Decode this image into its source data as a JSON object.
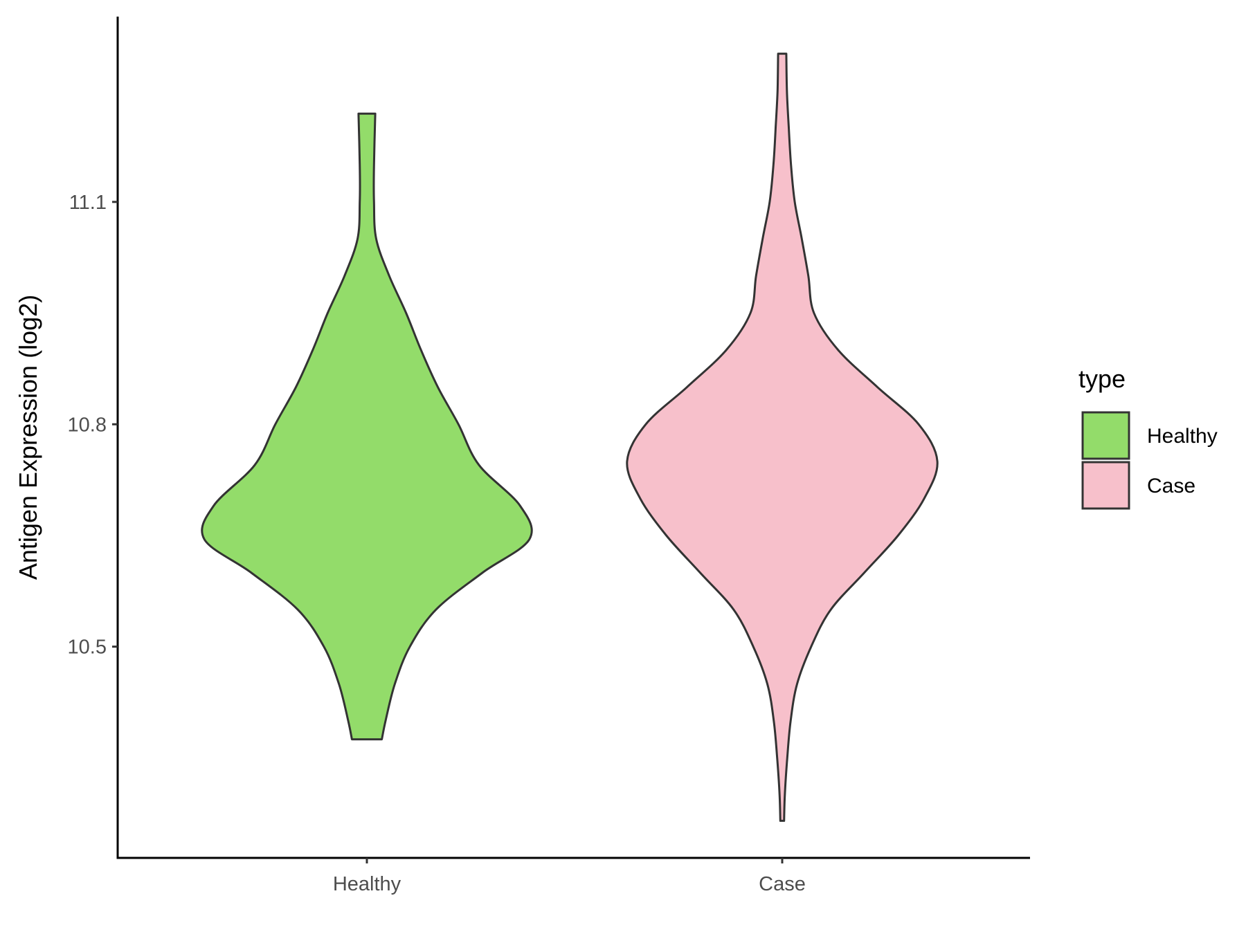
{
  "chart_data": {
    "type": "violin",
    "title": "",
    "xlabel": "",
    "ylabel": "Antigen Expression (log2)",
    "ylim": [
      10.215,
      11.35
    ],
    "yticks": [
      10.5,
      10.8,
      11.1
    ],
    "ytick_labels": [
      "10.5",
      "10.8",
      "11.1"
    ],
    "categories": [
      "Healthy",
      "Case"
    ],
    "colors": {
      "Healthy": "#93dc6a",
      "Case": "#f7c0cb",
      "outline": "#333333"
    },
    "series": [
      {
        "name": "Healthy",
        "min": 10.375,
        "max": 11.219,
        "density_profile": [
          [
            10.375,
            0.08
          ],
          [
            10.4,
            0.1
          ],
          [
            10.45,
            0.15
          ],
          [
            10.5,
            0.23
          ],
          [
            10.55,
            0.37
          ],
          [
            10.6,
            0.62
          ],
          [
            10.645,
            0.87
          ],
          [
            10.69,
            0.82
          ],
          [
            10.745,
            0.6
          ],
          [
            10.8,
            0.49
          ],
          [
            10.85,
            0.38
          ],
          [
            10.9,
            0.29
          ],
          [
            10.95,
            0.21
          ],
          [
            11.0,
            0.12
          ],
          [
            11.05,
            0.05
          ],
          [
            11.1,
            0.038
          ],
          [
            11.15,
            0.038
          ],
          [
            11.219,
            0.045
          ]
        ]
      },
      {
        "name": "Case",
        "min": 10.265,
        "max": 11.3,
        "density_profile": [
          [
            10.265,
            0.01
          ],
          [
            10.3,
            0.014
          ],
          [
            10.35,
            0.027
          ],
          [
            10.4,
            0.045
          ],
          [
            10.45,
            0.08
          ],
          [
            10.5,
            0.155
          ],
          [
            10.55,
            0.26
          ],
          [
            10.6,
            0.44
          ],
          [
            10.65,
            0.62
          ],
          [
            10.7,
            0.76
          ],
          [
            10.75,
            0.83
          ],
          [
            10.8,
            0.73
          ],
          [
            10.85,
            0.51
          ],
          [
            10.9,
            0.3
          ],
          [
            10.95,
            0.17
          ],
          [
            11.0,
            0.14
          ],
          [
            11.05,
            0.105
          ],
          [
            11.1,
            0.067
          ],
          [
            11.15,
            0.047
          ],
          [
            11.2,
            0.035
          ],
          [
            11.25,
            0.025
          ],
          [
            11.3,
            0.022
          ]
        ]
      }
    ],
    "legend": {
      "title": "type",
      "position": "right",
      "items": [
        "Healthy",
        "Case"
      ]
    },
    "grid": false
  }
}
